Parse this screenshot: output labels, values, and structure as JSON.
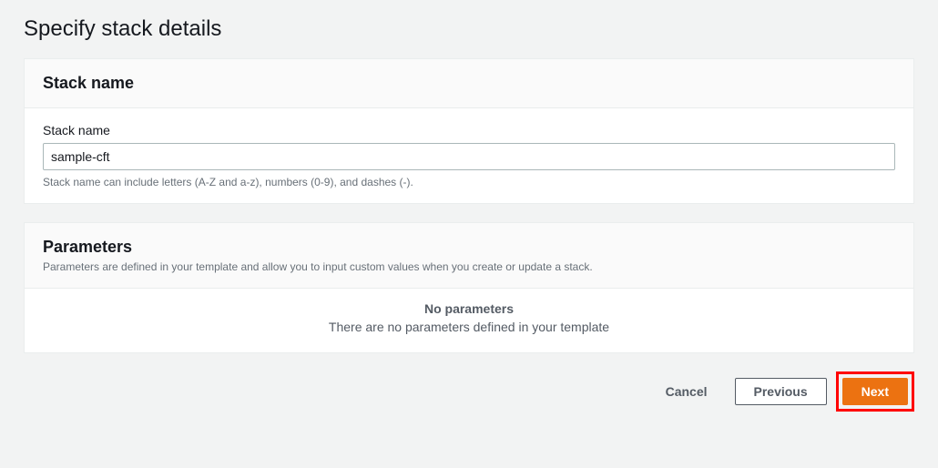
{
  "page": {
    "title": "Specify stack details"
  },
  "stack": {
    "panel_title": "Stack name",
    "field_label": "Stack name",
    "value": "sample-cft",
    "helper": "Stack name can include letters (A-Z and a-z), numbers (0-9), and dashes (-)."
  },
  "parameters": {
    "panel_title": "Parameters",
    "description": "Parameters are defined in your template and allow you to input custom values when you create or update a stack.",
    "empty_title": "No parameters",
    "empty_desc": "There are no parameters defined in your template"
  },
  "buttons": {
    "cancel": "Cancel",
    "previous": "Previous",
    "next": "Next"
  },
  "colors": {
    "background": "#f2f3f3",
    "panel_bg": "#ffffff",
    "panel_border": "#eaeded",
    "header_bg": "#fafafa",
    "text_primary": "#16191f",
    "text_secondary": "#687078",
    "text_muted": "#545b64",
    "input_border": "#aab7b8",
    "accent": "#ec7211",
    "highlight": "#ff0000"
  }
}
